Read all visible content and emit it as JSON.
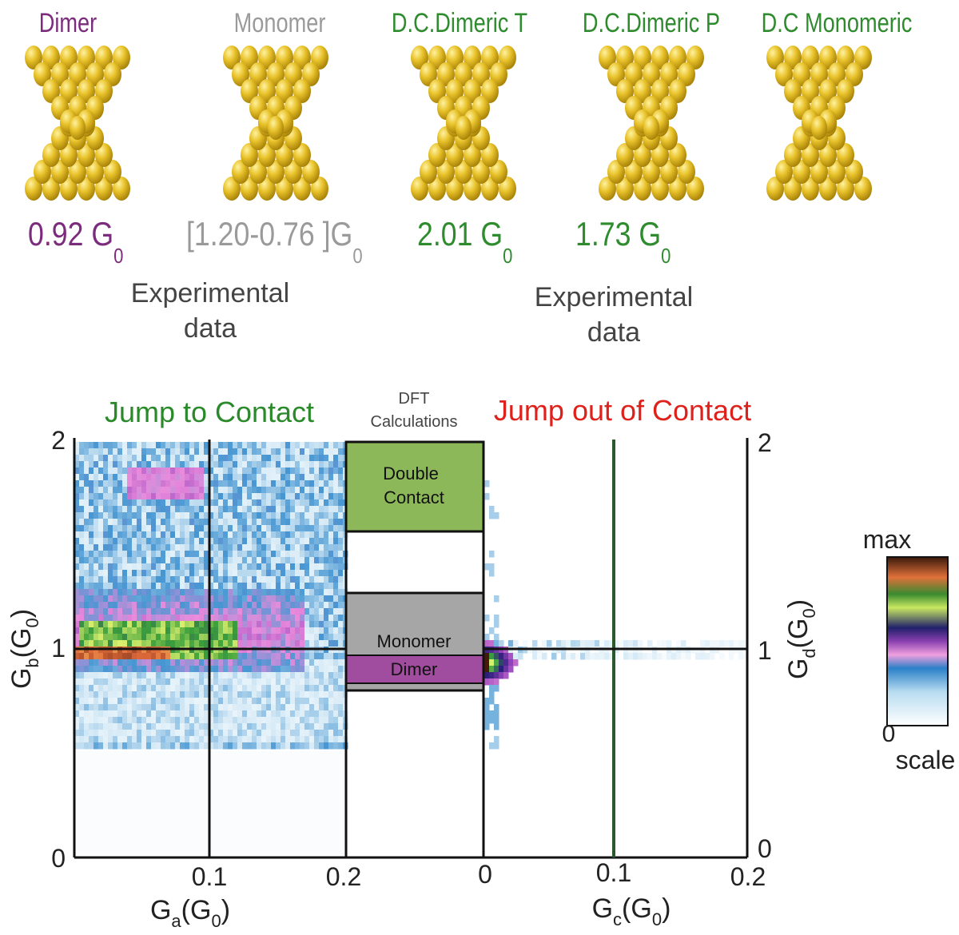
{
  "structures": [
    {
      "name": "Dimer",
      "value": "0.92 G",
      "subscript": "0"
    },
    {
      "name": "Monomer",
      "value": "[1.20-0.76 ]G",
      "subscript": "0"
    },
    {
      "name": "D.C.Dimeric T",
      "value": "2.01 G",
      "subscript": "0"
    },
    {
      "name": "D.C.Dimeric P",
      "value": "1.73 G",
      "subscript": "0"
    },
    {
      "name": "D.C Monomeric"
    }
  ],
  "notes": [
    [
      "Experimental",
      "data"
    ],
    [
      "Experimental",
      "data"
    ]
  ],
  "panels": {
    "left_title": "Jump to Contact",
    "center_title": [
      "DFT",
      "Calculations"
    ],
    "right_title": "Jump out of Contact"
  },
  "axes": {
    "left_yticks": [
      "2",
      "1",
      "0"
    ],
    "left_xticks": [
      "0.1",
      "0.2"
    ],
    "right_xticks": [
      "0",
      "0.1",
      "0.2"
    ],
    "right_yticks": [
      "2",
      "1",
      "0"
    ],
    "xlabel_left": [
      "G",
      "a",
      "(G",
      "0",
      ")"
    ],
    "ylabel_left": [
      "G",
      "b",
      "(G",
      "0",
      ")"
    ],
    "xlabel_right": [
      "G",
      "c",
      "(G",
      "0",
      ")"
    ],
    "ylabel_right": [
      "G",
      "d",
      "(G",
      "0",
      ")"
    ]
  },
  "dft_boxes": {
    "double_contact": [
      "Double",
      "Contact"
    ],
    "monomer": "Monomer",
    "dimer": "Dimer"
  },
  "colorbar": {
    "max": "max",
    "min": "0",
    "label": "scale"
  }
}
